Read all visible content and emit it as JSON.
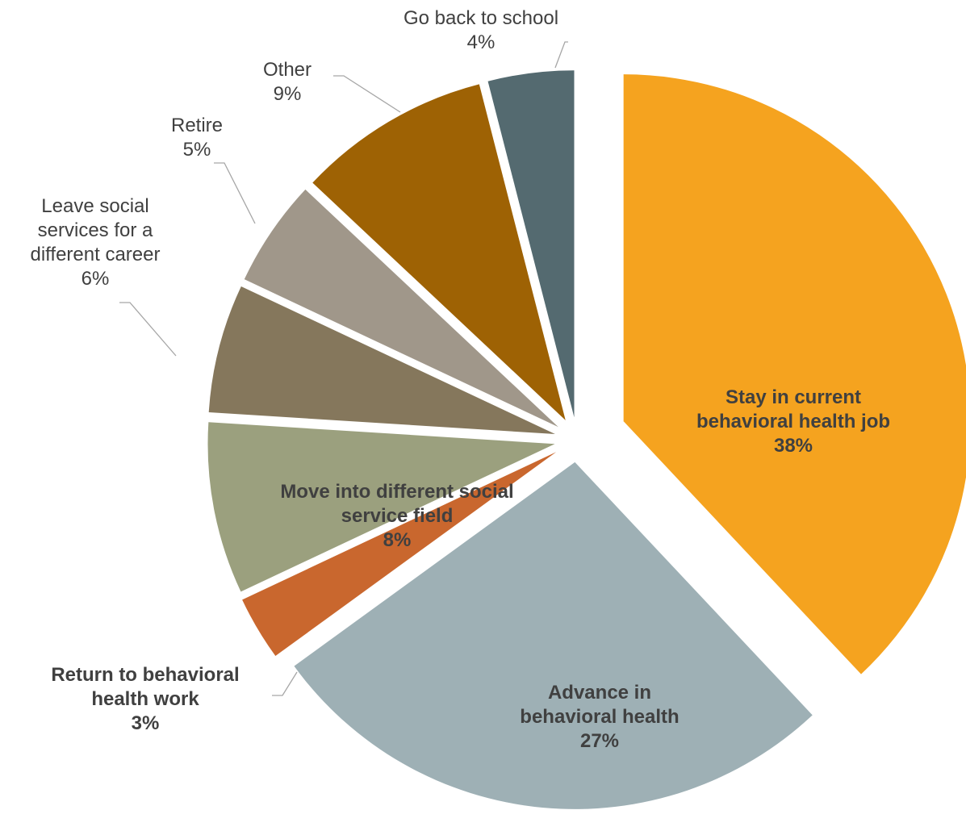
{
  "chart_data": {
    "type": "pie",
    "title": "",
    "exploded": true,
    "slices": [
      {
        "lines": [
          "Stay in current",
          "behavioral health job"
        ],
        "value": 38,
        "value_label": "38%",
        "color": "#F5A31F",
        "bold": true
      },
      {
        "lines": [
          "Advance in",
          "behavioral health"
        ],
        "value": 27,
        "value_label": "27%",
        "color": "#9EB0B5",
        "bold": true
      },
      {
        "lines": [
          "Return to behavioral",
          "health work"
        ],
        "value": 3,
        "value_label": "3%",
        "color": "#C9672E",
        "bold": true
      },
      {
        "lines": [
          "Move into different social",
          "service field"
        ],
        "value": 8,
        "value_label": "8%",
        "color": "#9BA07E",
        "bold": true
      },
      {
        "lines": [
          "Leave social",
          "services for a",
          "different career"
        ],
        "value": 6,
        "value_label": "6%",
        "color": "#85775C",
        "bold": false
      },
      {
        "lines": [
          "Retire"
        ],
        "value": 5,
        "value_label": "5%",
        "color": "#A0978A",
        "bold": false
      },
      {
        "lines": [
          "Other"
        ],
        "value": 9,
        "value_label": "9%",
        "color": "#9E6204",
        "bold": false
      },
      {
        "lines": [
          "Go back to school"
        ],
        "value": 4,
        "value_label": "4%",
        "color": "#546A70",
        "bold": false
      }
    ]
  }
}
